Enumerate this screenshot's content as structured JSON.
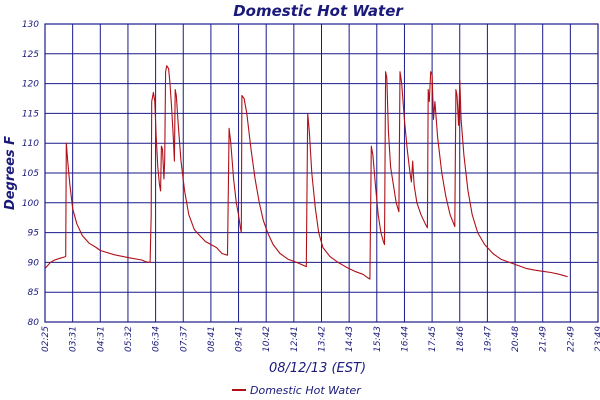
{
  "chart_data": {
    "type": "line",
    "title": "Domestic Hot Water",
    "xlabel": "08/12/13 (EST)",
    "ylabel": "Degrees F",
    "ylim": [
      80,
      130
    ],
    "ytick_step": 5,
    "yticks": [
      "80",
      "85",
      "90",
      "95",
      "100",
      "105",
      "110",
      "115",
      "120",
      "125",
      "130"
    ],
    "xticks": [
      "02:25",
      "03:31",
      "04:31",
      "05:32",
      "06:34",
      "07:37",
      "08:41",
      "09:41",
      "10:42",
      "12:41",
      "13:42",
      "14:43",
      "15:43",
      "16:44",
      "17:45",
      "18:46",
      "19:47",
      "20:48",
      "21:49",
      "22:49",
      "23:49"
    ],
    "grid": true,
    "legend_position": "bottom-center",
    "colors": {
      "series": "#b01018",
      "grid": "#1a1a8a",
      "text": "#1a1a7a"
    },
    "series": [
      {
        "name": "Domestic Hot Water",
        "x_unit": "tick index",
        "points": [
          [
            0.0,
            89.0
          ],
          [
            0.1,
            89.5
          ],
          [
            0.2,
            90.0
          ],
          [
            0.35,
            90.4
          ],
          [
            0.55,
            90.7
          ],
          [
            0.7,
            90.9
          ],
          [
            0.75,
            91.0
          ],
          [
            0.77,
            110.0
          ],
          [
            0.82,
            107.0
          ],
          [
            0.9,
            103.0
          ],
          [
            1.0,
            99.0
          ],
          [
            1.15,
            96.5
          ],
          [
            1.35,
            94.5
          ],
          [
            1.6,
            93.2
          ],
          [
            1.85,
            92.5
          ],
          [
            2.0,
            92.0
          ],
          [
            2.5,
            91.3
          ],
          [
            3.0,
            90.8
          ],
          [
            3.5,
            90.4
          ],
          [
            3.65,
            90.1
          ],
          [
            3.8,
            90.0
          ],
          [
            3.84,
            98.0
          ],
          [
            3.86,
            117.0
          ],
          [
            3.92,
            118.5
          ],
          [
            3.97,
            117.0
          ],
          [
            4.02,
            111.0
          ],
          [
            4.08,
            106.0
          ],
          [
            4.14,
            103.0
          ],
          [
            4.18,
            102.0
          ],
          [
            4.21,
            109.5
          ],
          [
            4.25,
            109.0
          ],
          [
            4.3,
            104.0
          ],
          [
            4.33,
            107.0
          ],
          [
            4.36,
            122.0
          ],
          [
            4.4,
            123.0
          ],
          [
            4.47,
            122.5
          ],
          [
            4.52,
            120.0
          ],
          [
            4.58,
            116.0
          ],
          [
            4.64,
            111.0
          ],
          [
            4.68,
            107.0
          ],
          [
            4.71,
            119.0
          ],
          [
            4.75,
            118.0
          ],
          [
            4.82,
            113.0
          ],
          [
            4.92,
            107.0
          ],
          [
            5.05,
            102.0
          ],
          [
            5.2,
            98.0
          ],
          [
            5.4,
            95.5
          ],
          [
            5.6,
            94.5
          ],
          [
            5.8,
            93.5
          ],
          [
            6.0,
            93.0
          ],
          [
            6.2,
            92.5
          ],
          [
            6.4,
            91.5
          ],
          [
            6.6,
            91.2
          ],
          [
            6.66,
            112.5
          ],
          [
            6.72,
            110.0
          ],
          [
            6.82,
            104.0
          ],
          [
            6.92,
            100.0
          ],
          [
            7.0,
            98.0
          ],
          [
            7.06,
            96.0
          ],
          [
            7.1,
            95.0
          ],
          [
            7.12,
            118.0
          ],
          [
            7.2,
            117.5
          ],
          [
            7.3,
            115.0
          ],
          [
            7.45,
            109.0
          ],
          [
            7.6,
            104.0
          ],
          [
            7.75,
            100.0
          ],
          [
            7.9,
            97.0
          ],
          [
            8.05,
            95.0
          ],
          [
            8.25,
            93.0
          ],
          [
            8.5,
            91.5
          ],
          [
            8.8,
            90.5
          ],
          [
            9.1,
            90.0
          ],
          [
            9.35,
            89.5
          ],
          [
            9.45,
            89.3
          ],
          [
            9.5,
            115.0
          ],
          [
            9.56,
            112.0
          ],
          [
            9.65,
            105.0
          ],
          [
            9.78,
            99.0
          ],
          [
            9.9,
            95.0
          ],
          [
            10.05,
            92.5
          ],
          [
            10.3,
            91.0
          ],
          [
            10.6,
            90.0
          ],
          [
            10.9,
            89.2
          ],
          [
            11.2,
            88.5
          ],
          [
            11.5,
            88.0
          ],
          [
            11.65,
            87.5
          ],
          [
            11.75,
            87.2
          ],
          [
            11.8,
            109.5
          ],
          [
            11.86,
            108.0
          ],
          [
            11.95,
            103.0
          ],
          [
            12.05,
            98.0
          ],
          [
            12.15,
            95.0
          ],
          [
            12.24,
            93.5
          ],
          [
            12.28,
            93.0
          ],
          [
            12.32,
            122.0
          ],
          [
            12.36,
            121.0
          ],
          [
            12.42,
            112.0
          ],
          [
            12.5,
            106.0
          ],
          [
            12.6,
            103.0
          ],
          [
            12.7,
            100.0
          ],
          [
            12.8,
            98.5
          ],
          [
            12.84,
            122.0
          ],
          [
            12.9,
            120.0
          ],
          [
            13.0,
            114.0
          ],
          [
            13.1,
            109.0
          ],
          [
            13.2,
            105.0
          ],
          [
            13.25,
            103.5
          ],
          [
            13.3,
            107.0
          ],
          [
            13.35,
            103.0
          ],
          [
            13.45,
            100.0
          ],
          [
            13.6,
            98.0
          ],
          [
            13.75,
            96.5
          ],
          [
            13.83,
            95.8
          ],
          [
            13.86,
            119.0
          ],
          [
            13.9,
            117.0
          ],
          [
            13.95,
            122.0
          ],
          [
            14.0,
            121.5
          ],
          [
            14.05,
            114.0
          ],
          [
            14.1,
            117.0
          ],
          [
            14.2,
            111.0
          ],
          [
            14.35,
            105.0
          ],
          [
            14.5,
            101.0
          ],
          [
            14.65,
            98.0
          ],
          [
            14.78,
            96.5
          ],
          [
            14.82,
            96.0
          ],
          [
            14.86,
            119.0
          ],
          [
            14.9,
            118.0
          ],
          [
            14.96,
            113.0
          ],
          [
            15.0,
            120.5
          ],
          [
            15.05,
            114.0
          ],
          [
            15.15,
            108.0
          ],
          [
            15.3,
            102.0
          ],
          [
            15.45,
            98.0
          ],
          [
            15.65,
            95.0
          ],
          [
            15.9,
            93.0
          ],
          [
            16.2,
            91.5
          ],
          [
            16.5,
            90.5
          ],
          [
            16.8,
            90.0
          ],
          [
            17.1,
            89.5
          ],
          [
            17.4,
            89.0
          ],
          [
            17.7,
            88.7
          ],
          [
            18.0,
            88.5
          ],
          [
            18.3,
            88.3
          ],
          [
            18.6,
            88.0
          ],
          [
            18.9,
            87.6
          ]
        ]
      }
    ],
    "legend": {
      "label": "Domestic Hot Water"
    }
  }
}
